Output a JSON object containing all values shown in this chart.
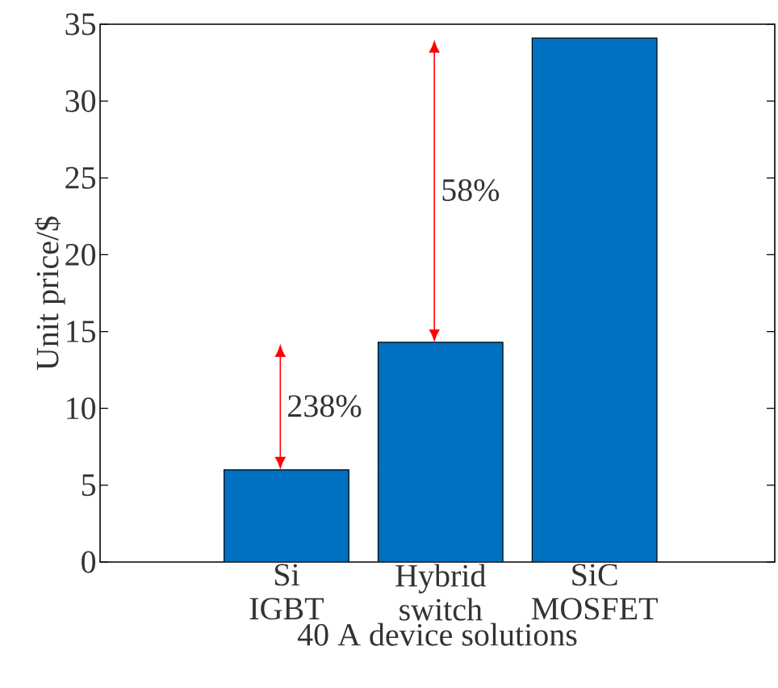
{
  "chart_data": {
    "type": "bar",
    "categories": [
      "Si IGBT",
      "Hybrid switch",
      "SiC MOSFET"
    ],
    "values": [
      6.0,
      14.3,
      34.1
    ],
    "color": "#0070c0",
    "xlabel": "40 A device solutions",
    "ylabel": "Unit price/$",
    "ylim": [
      0,
      35
    ],
    "yticks": [
      0,
      5,
      10,
      15,
      20,
      25,
      30,
      35
    ],
    "annotations": [
      "238%",
      "58%"
    ]
  }
}
